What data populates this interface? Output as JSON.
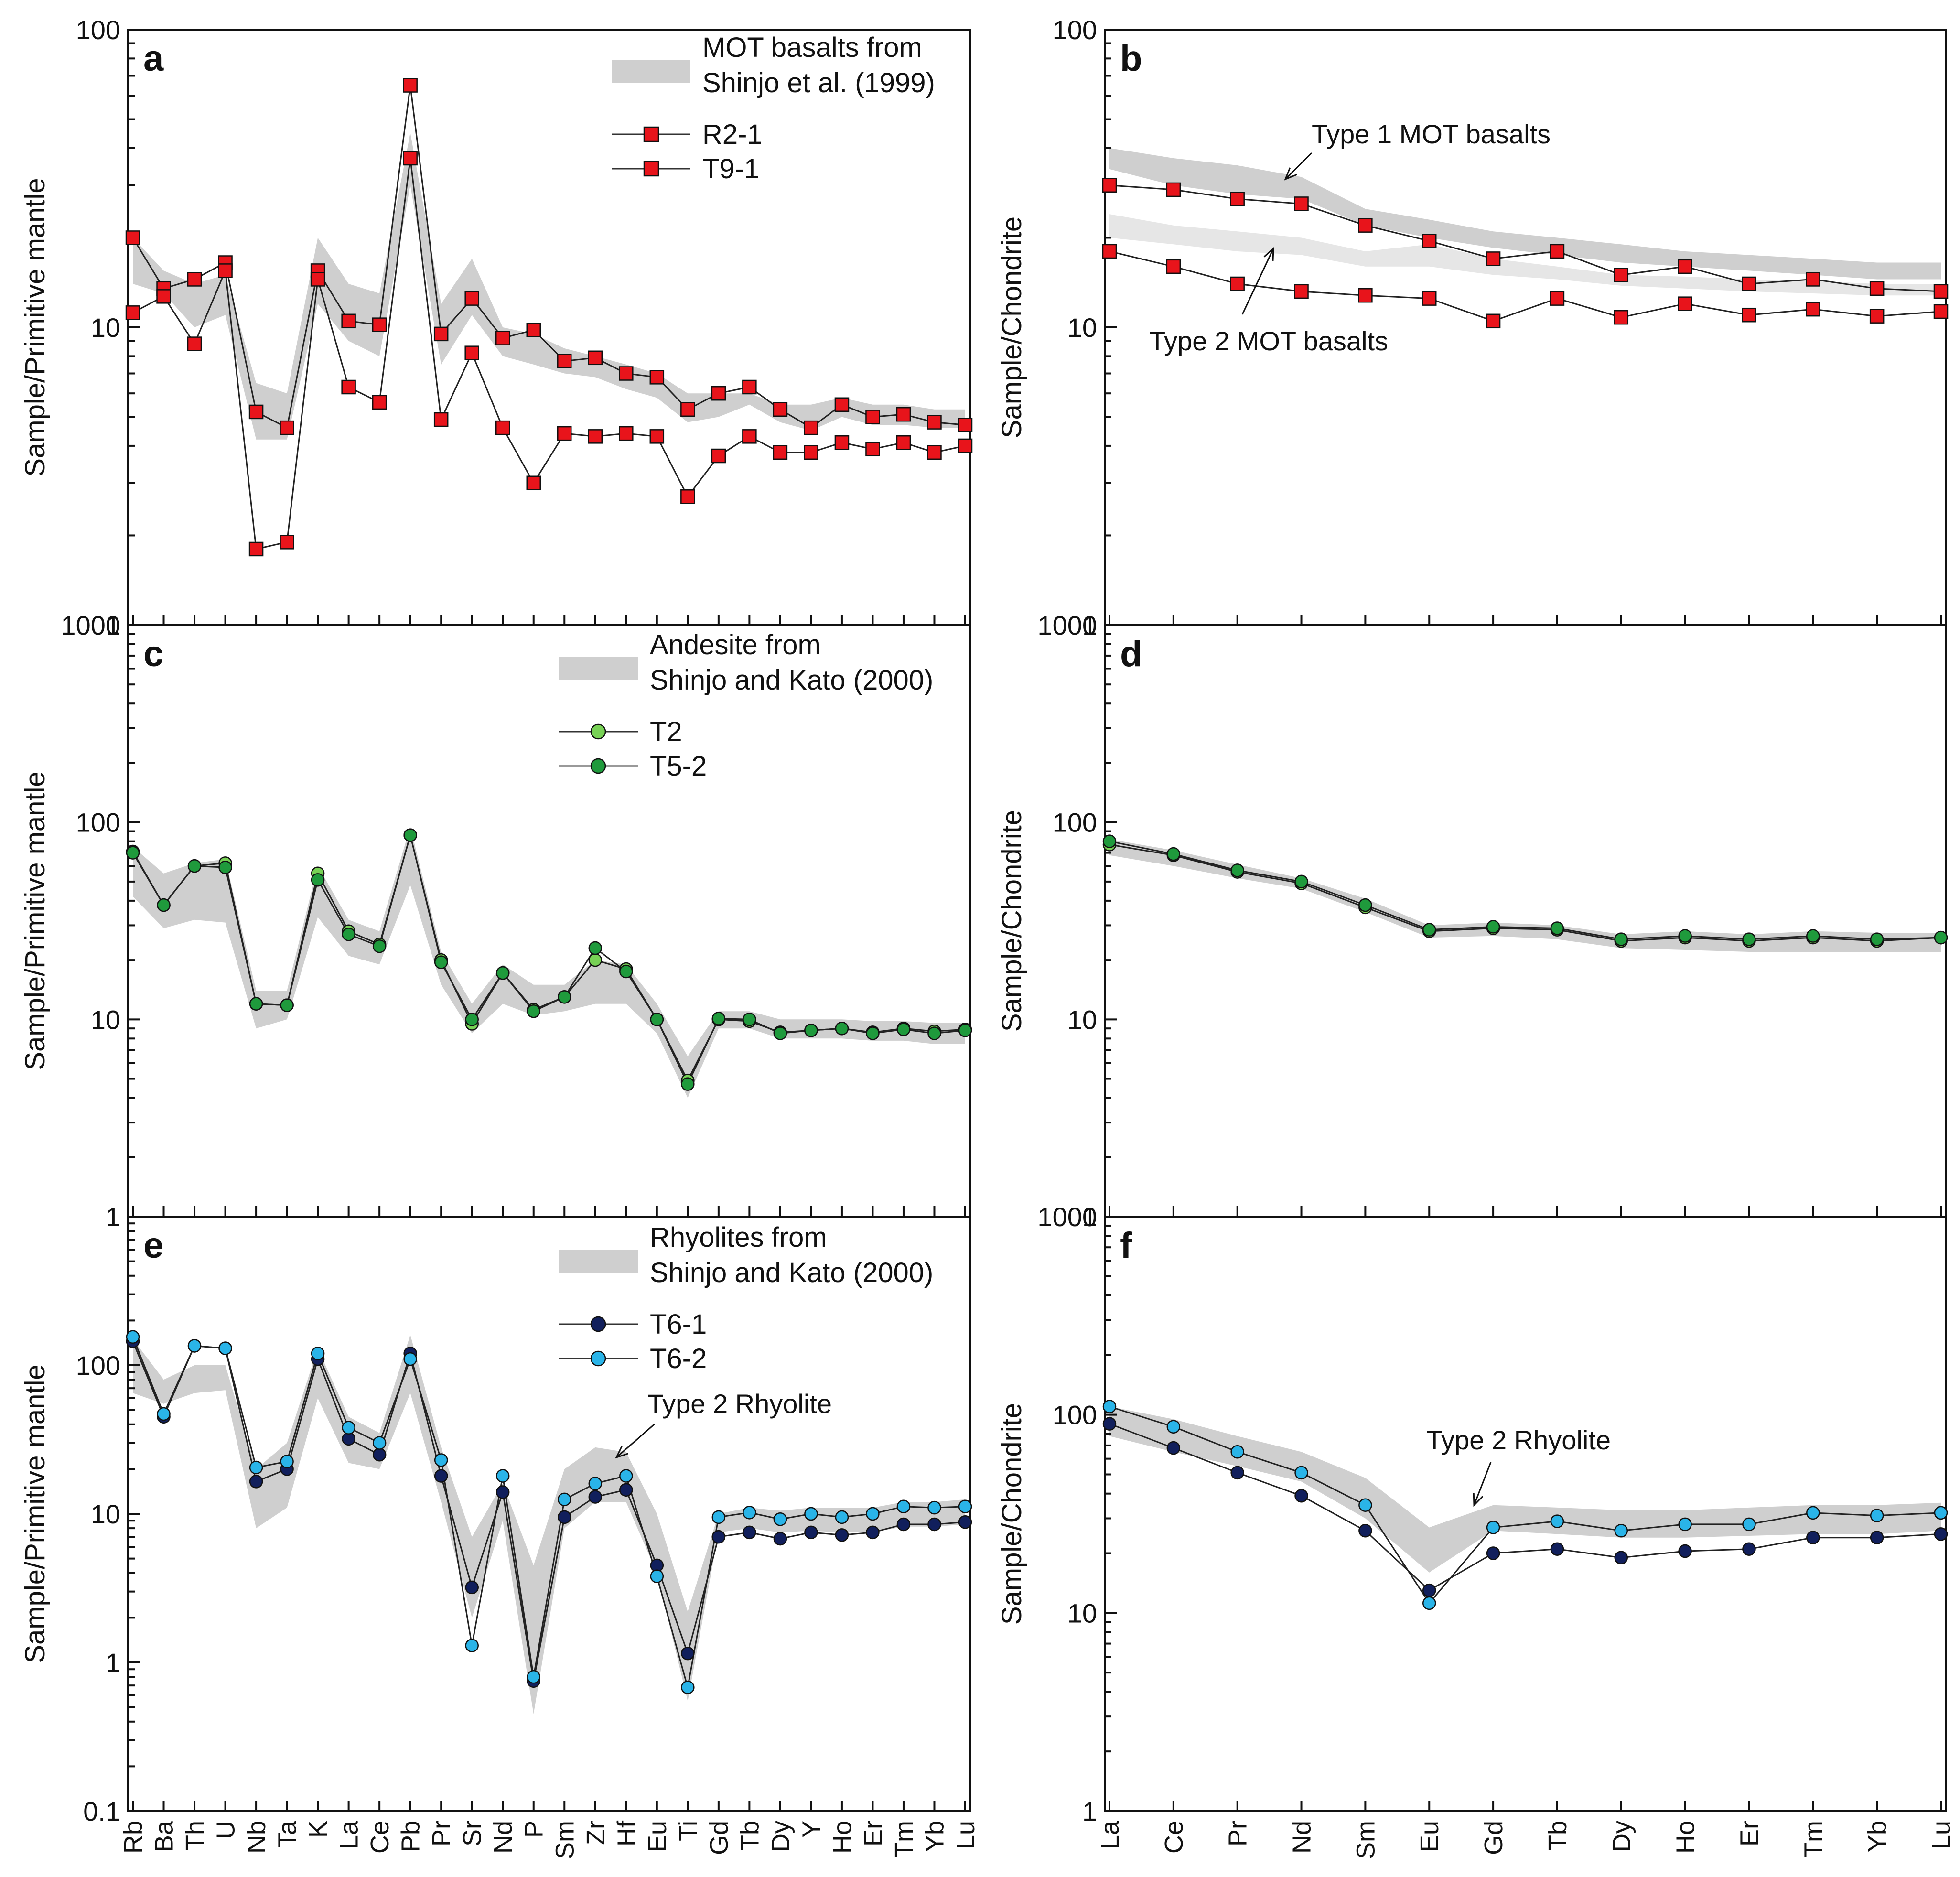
{
  "chart_data": [
    {
      "id": "a",
      "type": "line",
      "panel_label": "a",
      "ylabel": "Sample/Primitive mantle",
      "yscale": "log",
      "ylim": [
        1,
        100
      ],
      "yticks": [
        1,
        10,
        100
      ],
      "ytick_labels": [
        "1",
        "10",
        "100"
      ],
      "categories": [
        "Rb",
        "Ba",
        "Th",
        "U",
        "Nb",
        "Ta",
        "K",
        "La",
        "Ce",
        "Pb",
        "Pr",
        "Sr",
        "Nd",
        "P",
        "Sm",
        "Zr",
        "Hf",
        "Eu",
        "Ti",
        "Gd",
        "Tb",
        "Dy",
        "Y",
        "Ho",
        "Er",
        "Tm",
        "Yb",
        "Lu"
      ],
      "show_category_labels": false,
      "legend": {
        "band_label_lines": [
          "MOT basalts from",
          "Shinjo et al. (1999)"
        ],
        "series_labels": [
          "R2-1",
          "T9-1"
        ]
      },
      "bands": [
        {
          "color": "#cfcfcf",
          "upper": [
            20,
            15.5,
            14,
            15,
            6.5,
            6,
            20,
            14,
            13,
            45,
            12,
            17,
            10,
            9.5,
            8.5,
            8,
            7.5,
            7,
            6,
            6,
            6,
            5.5,
            5.5,
            5.8,
            5.5,
            5.5,
            5.3,
            5.3
          ],
          "lower": [
            14,
            13,
            10,
            11,
            4.2,
            4.2,
            12,
            9,
            8,
            30,
            7.5,
            11,
            8,
            7.5,
            7,
            6.8,
            6.2,
            5.8,
            4.8,
            5,
            5.5,
            4.8,
            4.5,
            5,
            4.7,
            4.7,
            4.6,
            4.6
          ]
        }
      ],
      "series": [
        {
          "name": "R2-1",
          "marker": "square",
          "color": "#e8141b",
          "values": [
            20,
            13.5,
            14.5,
            16.5,
            5.2,
            4.6,
            15.5,
            10.5,
            10.2,
            65,
            9.5,
            12.5,
            9.2,
            9.8,
            7.7,
            7.9,
            7,
            6.8,
            5.3,
            6,
            6.3,
            5.3,
            4.6,
            5.5,
            5,
            5.1,
            4.8,
            4.7
          ]
        },
        {
          "name": "T9-1",
          "marker": "square",
          "color": "#e8141b",
          "values": [
            11.2,
            12.7,
            8.8,
            15.5,
            1.8,
            1.9,
            14.5,
            6.3,
            5.6,
            37,
            4.9,
            8.2,
            4.6,
            3,
            4.4,
            4.3,
            4.4,
            4.3,
            2.7,
            3.7,
            4.3,
            3.8,
            3.8,
            4.1,
            3.9,
            4.1,
            3.8,
            4
          ]
        }
      ]
    },
    {
      "id": "b",
      "type": "line",
      "panel_label": "b",
      "ylabel": "Sample/Chondrite",
      "yscale": "log",
      "ylim": [
        1,
        100
      ],
      "yticks": [
        1,
        10,
        100
      ],
      "ytick_labels": [
        "1",
        "10",
        "100"
      ],
      "categories": [
        "La",
        "Ce",
        "Pr",
        "Nd",
        "Sm",
        "Eu",
        "Gd",
        "Tb",
        "Dy",
        "Ho",
        "Er",
        "Tm",
        "Yb",
        "Lu"
      ],
      "show_category_labels": false,
      "annotations": [
        "Type 1 MOT basalts",
        "Type 2 MOT basalts"
      ],
      "bands": [
        {
          "color": "#cfcfcf",
          "upper": [
            40,
            37,
            35,
            32,
            25,
            23,
            21,
            20,
            19,
            18,
            17.5,
            17,
            16.5,
            16.5
          ],
          "lower": [
            34,
            30,
            28,
            27,
            22,
            20,
            18.5,
            17.5,
            16.5,
            16,
            15.5,
            15,
            14.5,
            14.5
          ]
        },
        {
          "color": "#e6e6e6",
          "upper": [
            24,
            22,
            21,
            20,
            18,
            19,
            17,
            16,
            15,
            14.8,
            14.5,
            14.3,
            14,
            14
          ],
          "lower": [
            20,
            19,
            18,
            17.5,
            16,
            16,
            15,
            14.5,
            13.8,
            13.5,
            13.2,
            13,
            12.8,
            12.8
          ]
        }
      ],
      "series": [
        {
          "name": "R2-1",
          "marker": "square",
          "color": "#e8141b",
          "values": [
            30,
            29,
            27,
            26,
            22,
            19.5,
            17,
            18,
            15,
            16,
            14,
            14.5,
            13.5,
            13.2
          ]
        },
        {
          "name": "T9-1",
          "marker": "square",
          "color": "#e8141b",
          "values": [
            18,
            16,
            14,
            13.2,
            12.8,
            12.5,
            10.5,
            12.5,
            10.8,
            12,
            11,
            11.5,
            10.9,
            11.3
          ]
        }
      ]
    },
    {
      "id": "c",
      "type": "line",
      "panel_label": "c",
      "ylabel": "Sample/Primitive mantle",
      "yscale": "log",
      "ylim": [
        1,
        1000
      ],
      "yticks": [
        1,
        10,
        100,
        1000
      ],
      "ytick_labels": [
        "1",
        "10",
        "100",
        "1000"
      ],
      "categories": [
        "Rb",
        "Ba",
        "Th",
        "U",
        "Nb",
        "Ta",
        "K",
        "La",
        "Ce",
        "Pb",
        "Pr",
        "Sr",
        "Nd",
        "P",
        "Sm",
        "Zr",
        "Hf",
        "Eu",
        "Ti",
        "Gd",
        "Tb",
        "Dy",
        "Y",
        "Ho",
        "Er",
        "Tm",
        "Yb",
        "Lu"
      ],
      "show_category_labels": false,
      "legend": {
        "band_label_lines": [
          "Andesite from",
          "Shinjo and Kato (2000)"
        ],
        "series_labels": [
          "T2",
          "T5-2"
        ]
      },
      "bands": [
        {
          "color": "#cfcfcf",
          "upper": [
            75,
            55,
            62,
            65,
            14,
            14,
            60,
            32,
            28,
            95,
            22,
            12,
            19,
            15,
            15,
            20,
            19,
            12,
            6.5,
            11,
            11,
            10,
            10,
            10,
            9.8,
            9.8,
            9.6,
            9.6
          ],
          "lower": [
            42,
            29,
            32,
            31,
            9,
            10,
            33,
            21,
            19,
            48,
            15,
            8.5,
            12,
            10.5,
            11,
            12,
            12,
            8.5,
            4,
            9,
            9,
            8,
            8,
            8,
            7.8,
            7.8,
            7.5,
            7.5
          ]
        }
      ],
      "series": [
        {
          "name": "T2",
          "marker": "circle",
          "color": "#78d256",
          "values": [
            71,
            38,
            60,
            62,
            12,
            11.8,
            55,
            28,
            24,
            86,
            20,
            9.5,
            17.2,
            11.2,
            13,
            20,
            18,
            10,
            4.9,
            10,
            9.8,
            8.6,
            8.8,
            9,
            8.6,
            9,
            8.7,
            8.9
          ]
        },
        {
          "name": "T5-2",
          "marker": "circle",
          "color": "#1f9a3c",
          "values": [
            70,
            38,
            60,
            59,
            12,
            11.8,
            51,
            27,
            23.5,
            86,
            19.5,
            10,
            17.2,
            11,
            13,
            23,
            17.5,
            10,
            4.7,
            10.1,
            10,
            8.5,
            8.8,
            9,
            8.5,
            8.9,
            8.5,
            8.8
          ]
        }
      ]
    },
    {
      "id": "d",
      "type": "line",
      "panel_label": "d",
      "ylabel": "Sample/Chondrite",
      "yscale": "log",
      "ylim": [
        1,
        1000
      ],
      "yticks": [
        1,
        10,
        100,
        1000
      ],
      "ytick_labels": [
        "1",
        "10",
        "100",
        "1000"
      ],
      "categories": [
        "La",
        "Ce",
        "Pr",
        "Nd",
        "Sm",
        "Eu",
        "Gd",
        "Tb",
        "Dy",
        "Ho",
        "Er",
        "Tm",
        "Yb",
        "Lu"
      ],
      "show_category_labels": false,
      "bands": [
        {
          "color": "#cfcfcf",
          "upper": [
            82,
            72,
            61,
            52,
            41,
            30,
            31,
            30,
            27,
            28,
            27,
            28,
            27.5,
            27.5
          ],
          "lower": [
            68,
            60,
            52,
            46,
            35,
            26,
            26.5,
            25.5,
            23,
            22.5,
            22,
            22,
            22,
            22
          ]
        }
      ],
      "series": [
        {
          "name": "T2",
          "marker": "circle",
          "color": "#78d256",
          "values": [
            77,
            68,
            56,
            49,
            37,
            28,
            29,
            28.5,
            25,
            26,
            25,
            26,
            25,
            26
          ]
        },
        {
          "name": "T5-2",
          "marker": "circle",
          "color": "#1f9a3c",
          "values": [
            80,
            69,
            57,
            50,
            38,
            28.5,
            29.5,
            29,
            25.5,
            26.5,
            25.5,
            26.5,
            25.5,
            26
          ]
        }
      ]
    },
    {
      "id": "e",
      "type": "line",
      "panel_label": "e",
      "ylabel": "Sample/Primitive mantle",
      "yscale": "log",
      "ylim": [
        0.1,
        1000
      ],
      "yticks": [
        0.1,
        1,
        10,
        100
      ],
      "ytick_labels": [
        "0.1",
        "1",
        "10",
        "100"
      ],
      "categories": [
        "Rb",
        "Ba",
        "Th",
        "U",
        "Nb",
        "Ta",
        "K",
        "La",
        "Ce",
        "Pb",
        "Pr",
        "Sr",
        "Nd",
        "P",
        "Sm",
        "Zr",
        "Hf",
        "Eu",
        "Ti",
        "Gd",
        "Tb",
        "Dy",
        "Y",
        "Ho",
        "Er",
        "Tm",
        "Yb",
        "Lu"
      ],
      "show_category_labels": true,
      "annotations": [
        "Type 2 Rhyolite"
      ],
      "legend": {
        "band_label_lines": [
          "Rhyolites from",
          "Shinjo and Kato (2000)"
        ],
        "series_labels": [
          "T6-1",
          "T6-2"
        ]
      },
      "bands": [
        {
          "color": "#cfcfcf",
          "upper": [
            150,
            80,
            100,
            100,
            20,
            30,
            130,
            45,
            35,
            160,
            28,
            7,
            16,
            4.5,
            20,
            28,
            26,
            10,
            2.2,
            10,
            11,
            10.5,
            11,
            11,
            11,
            12,
            12,
            12.5
          ],
          "lower": [
            65,
            55,
            65,
            68,
            8,
            11,
            60,
            22,
            20,
            65,
            12,
            2,
            9,
            0.45,
            8,
            12,
            12,
            4,
            0.55,
            7.5,
            8,
            7.5,
            7.7,
            7.5,
            7.5,
            8.2,
            8.2,
            8.5
          ]
        }
      ],
      "series": [
        {
          "name": "T6-1",
          "marker": "circle",
          "color": "#111f5c",
          "values": [
            145,
            45,
            135,
            130,
            16.5,
            20,
            110,
            32,
            25,
            120,
            18,
            3.2,
            14,
            0.75,
            9.5,
            13,
            14.5,
            4.5,
            1.15,
            7,
            7.5,
            6.8,
            7.5,
            7.2,
            7.5,
            8.5,
            8.5,
            8.8
          ]
        },
        {
          "name": "T6-2",
          "marker": "circle",
          "color": "#2ab4e8",
          "values": [
            155,
            47,
            135,
            130,
            20.5,
            22.5,
            120,
            38,
            30,
            110,
            23,
            1.3,
            18,
            0.8,
            12.5,
            16,
            18,
            3.8,
            0.68,
            9.5,
            10.2,
            9.2,
            10,
            9.5,
            10,
            11.2,
            11,
            11.2
          ]
        }
      ]
    },
    {
      "id": "f",
      "type": "line",
      "panel_label": "f",
      "ylabel": "Sample/Chondrite",
      "yscale": "log",
      "ylim": [
        1,
        1000
      ],
      "yticks": [
        1,
        10,
        100,
        1000
      ],
      "ytick_labels": [
        "1",
        "10",
        "100",
        "1000"
      ],
      "categories": [
        "La",
        "Ce",
        "Pr",
        "Nd",
        "Sm",
        "Eu",
        "Gd",
        "Tb",
        "Dy",
        "Ho",
        "Er",
        "Tm",
        "Yb",
        "Lu"
      ],
      "show_category_labels": true,
      "annotations": [
        "Type 2 Rhyolite"
      ],
      "bands": [
        {
          "color": "#cfcfcf",
          "upper": [
            110,
            95,
            78,
            65,
            48,
            27,
            35,
            34,
            33,
            33,
            34,
            35,
            35,
            36
          ],
          "lower": [
            78,
            65,
            55,
            46,
            30,
            16,
            26,
            25,
            24,
            24,
            24.5,
            25,
            25,
            26
          ]
        }
      ],
      "series": [
        {
          "name": "T6-1",
          "marker": "circle",
          "color": "#111f5c",
          "values": [
            90,
            68,
            51,
            39,
            26,
            13,
            20,
            21,
            19,
            20.5,
            21,
            24,
            24,
            25
          ]
        },
        {
          "name": "T6-2",
          "marker": "circle",
          "color": "#2ab4e8",
          "values": [
            110,
            87,
            65,
            51,
            35,
            11.2,
            27,
            29,
            26,
            28,
            28,
            32,
            31,
            32
          ]
        }
      ]
    }
  ]
}
